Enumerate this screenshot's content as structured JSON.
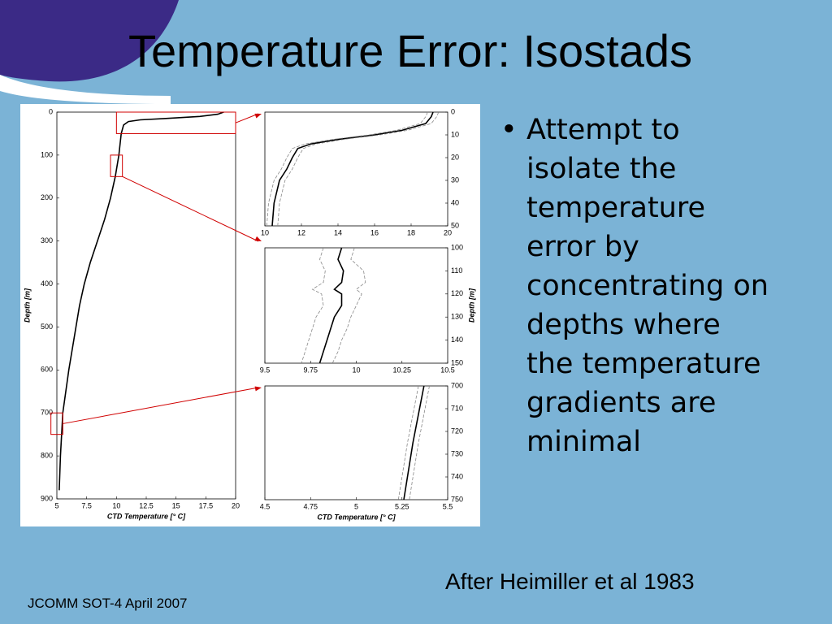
{
  "title": "Temperature Error: Isostads",
  "bullet": "Attempt to isolate the temperature error by concentrating on depths where the temperature gradients are minimal",
  "credit": "After Heimiller et al 1983",
  "footer": "JCOMM SOT-4 April 2007",
  "chart_data": [
    {
      "type": "line",
      "xlabel": "CTD Temperature [° C]",
      "ylabel": "Depth [m]",
      "xlim": [
        5,
        20
      ],
      "xticks": [
        5,
        7.5,
        10,
        12.5,
        15,
        17.5,
        20
      ],
      "ylim": [
        0,
        900
      ],
      "yticks": [
        0,
        100,
        200,
        300,
        400,
        500,
        600,
        700,
        800,
        900
      ],
      "y_inverted": true,
      "y_axis_side": "left",
      "series": [
        {
          "color": "#000000",
          "dashed": false,
          "x": [
            19.0,
            18.5,
            17.0,
            14.0,
            12.0,
            11.0,
            10.6,
            10.4,
            10.2,
            9.9,
            9.5,
            9.0,
            8.4,
            7.8,
            7.3,
            6.9,
            6.6,
            6.0,
            5.5,
            5.3,
            5.2
          ],
          "y": [
            0,
            5,
            10,
            15,
            18,
            22,
            30,
            50,
            100,
            150,
            200,
            250,
            300,
            350,
            400,
            450,
            500,
            600,
            700,
            800,
            880
          ]
        }
      ]
    },
    {
      "type": "line",
      "xlim": [
        10,
        20
      ],
      "xticks": [
        10,
        12,
        14,
        16,
        18,
        20
      ],
      "ylim": [
        0,
        50
      ],
      "yticks": [
        0,
        10,
        20,
        30,
        40,
        50
      ],
      "y_inverted": true,
      "y_axis_side": "right",
      "series": [
        {
          "color": "#000000",
          "dashed": false,
          "x": [
            19.2,
            19.1,
            18.8,
            17.5,
            16.0,
            14.0,
            12.5,
            11.8,
            11.5,
            11.2,
            10.8,
            10.5,
            10.4
          ],
          "y": [
            0,
            2,
            5,
            8,
            10,
            12,
            14,
            16,
            20,
            25,
            30,
            40,
            50
          ]
        },
        {
          "color": "#888888",
          "dashed": true,
          "x": [
            19.5,
            19.4,
            19.1,
            17.8,
            16.3,
            14.3,
            12.8,
            12.1,
            11.8,
            11.5,
            11.1,
            10.8,
            10.7
          ],
          "y": [
            0,
            2,
            5,
            8,
            10,
            12,
            14,
            16,
            20,
            25,
            30,
            40,
            50
          ]
        },
        {
          "color": "#888888",
          "dashed": true,
          "x": [
            18.9,
            18.8,
            18.5,
            17.2,
            15.7,
            13.7,
            12.2,
            11.5,
            11.2,
            10.9,
            10.5,
            10.2,
            10.1
          ],
          "y": [
            0,
            2,
            5,
            8,
            10,
            12,
            14,
            16,
            20,
            25,
            30,
            40,
            50
          ]
        }
      ]
    },
    {
      "type": "line",
      "ylabel": "Depth [m]",
      "xlim": [
        9.5,
        10.5
      ],
      "xticks": [
        9.5,
        9.75,
        10,
        10.25,
        10.5
      ],
      "ylim": [
        100,
        150
      ],
      "yticks": [
        100,
        110,
        120,
        130,
        140,
        150
      ],
      "y_inverted": true,
      "y_axis_side": "right",
      "series": [
        {
          "color": "#000000",
          "dashed": false,
          "x": [
            9.92,
            9.9,
            9.93,
            9.92,
            9.88,
            9.92,
            9.92,
            9.88,
            9.86,
            9.84,
            9.82,
            9.8
          ],
          "y": [
            100,
            105,
            110,
            115,
            118,
            120,
            125,
            130,
            135,
            140,
            145,
            150
          ]
        },
        {
          "color": "#888888",
          "dashed": true,
          "x": [
            9.99,
            9.97,
            10.04,
            10.05,
            10.0,
            10.03,
            10.0,
            9.97,
            9.95,
            9.92,
            9.9,
            9.87
          ],
          "y": [
            100,
            105,
            110,
            115,
            118,
            120,
            125,
            130,
            135,
            140,
            145,
            150
          ]
        },
        {
          "color": "#888888",
          "dashed": true,
          "x": [
            9.82,
            9.8,
            9.83,
            9.82,
            9.76,
            9.81,
            9.82,
            9.78,
            9.76,
            9.74,
            9.72,
            9.7
          ],
          "y": [
            100,
            105,
            110,
            115,
            118,
            120,
            125,
            130,
            135,
            140,
            145,
            150
          ]
        }
      ]
    },
    {
      "type": "line",
      "xlabel": "CTD Temperature [° C]",
      "xlim": [
        4.5,
        5.5
      ],
      "xticks": [
        4.5,
        4.75,
        5,
        5.25,
        5.5
      ],
      "ylim": [
        700,
        750
      ],
      "yticks": [
        700,
        710,
        720,
        730,
        740,
        750
      ],
      "y_inverted": true,
      "y_axis_side": "right",
      "series": [
        {
          "color": "#000000",
          "dashed": false,
          "x": [
            5.37,
            5.31,
            5.26
          ],
          "y": [
            700,
            725,
            750
          ]
        },
        {
          "color": "#888888",
          "dashed": true,
          "x": [
            5.4,
            5.34,
            5.29
          ],
          "y": [
            700,
            725,
            750
          ]
        },
        {
          "color": "#888888",
          "dashed": true,
          "x": [
            5.34,
            5.28,
            5.23
          ],
          "y": [
            700,
            725,
            750
          ]
        }
      ]
    }
  ]
}
